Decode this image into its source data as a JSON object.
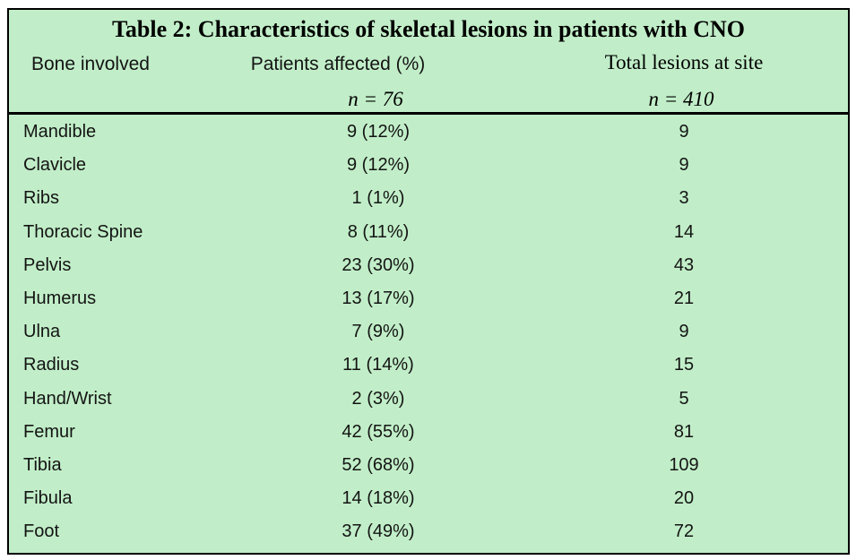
{
  "table": {
    "title": "Table 2: Characteristics of skeletal lesions in patients with CNO",
    "columns": [
      {
        "label": "Bone involved",
        "sub": ""
      },
      {
        "label": "Patients affected (%)",
        "sub": "n = 76"
      },
      {
        "label": "Total lesions at site",
        "sub": "n = 410"
      }
    ],
    "rows": [
      {
        "bone": "Mandible",
        "patients": "9 (12%)",
        "lesions": "9"
      },
      {
        "bone": "Clavicle",
        "patients": "9 (12%)",
        "lesions": "9"
      },
      {
        "bone": "Ribs",
        "patients": "1 (1%)",
        "lesions": "3"
      },
      {
        "bone": "Thoracic Spine",
        "patients": "8 (11%)",
        "lesions": "14"
      },
      {
        "bone": "Pelvis",
        "patients": "23 (30%)",
        "lesions": "43"
      },
      {
        "bone": "Humerus",
        "patients": "13 (17%)",
        "lesions": "21"
      },
      {
        "bone": "Ulna",
        "patients": "7 (9%)",
        "lesions": "9"
      },
      {
        "bone": "Radius",
        "patients": "11 (14%)",
        "lesions": "15"
      },
      {
        "bone": "Hand/Wrist",
        "patients": "2 (3%)",
        "lesions": "5"
      },
      {
        "bone": "Femur",
        "patients": "42 (55%)",
        "lesions": "81"
      },
      {
        "bone": "Tibia",
        "patients": "52 (68%)",
        "lesions": "109"
      },
      {
        "bone": "Fibula",
        "patients": "14 (18%)",
        "lesions": "20"
      },
      {
        "bone": "Foot",
        "patients": "37 (49%)",
        "lesions": "72"
      }
    ],
    "colors": {
      "table_background": "#c1eec8",
      "border": "#000000",
      "text": "#141414"
    }
  }
}
